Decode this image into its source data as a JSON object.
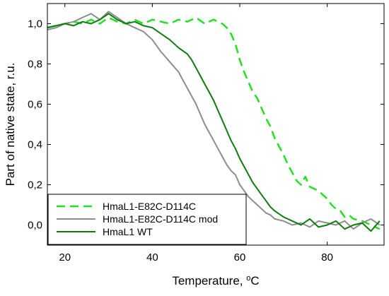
{
  "chart_data": {
    "type": "line",
    "xlabel": "Temperature, ",
    "xlabel_unit": "C",
    "xlabel_superscript": "o",
    "ylabel": "Part of native state, r.u.",
    "xlim": [
      16,
      93
    ],
    "ylim": [
      -0.1,
      1.1
    ],
    "x_ticks": [
      20,
      40,
      60,
      80
    ],
    "y_ticks": [
      0.0,
      0.2,
      0.4,
      0.6,
      0.8,
      1.0
    ],
    "x_tick_labels": [
      "20",
      "40",
      "60",
      "80"
    ],
    "y_tick_labels": [
      "0,0",
      "0,2",
      "0,4",
      "0,6",
      "0,8",
      "1,0"
    ],
    "grid": false,
    "legend_position": "bottom-left",
    "series": [
      {
        "name": "HmaL1-E82C-D114C",
        "color": "#22e022",
        "dash": "dashed",
        "x": [
          16,
          18,
          20,
          22,
          24,
          26,
          28,
          30,
          32,
          34,
          36,
          38,
          40,
          42,
          44,
          46,
          48,
          50,
          52,
          54,
          56,
          57,
          58,
          59,
          60,
          61,
          62,
          63,
          64,
          65,
          66,
          67,
          68,
          69,
          70,
          71,
          72,
          73,
          74,
          75,
          76,
          77,
          78,
          79,
          80,
          81,
          82,
          83,
          84,
          85,
          86,
          88,
          90,
          92
        ],
        "y": [
          0.98,
          0.99,
          1.0,
          1.01,
          1.0,
          1.02,
          1.0,
          1.03,
          1.01,
          1.0,
          1.02,
          1.0,
          1.02,
          1.01,
          1.0,
          1.02,
          1.01,
          1.03,
          1.0,
          1.02,
          1.0,
          0.98,
          0.95,
          0.9,
          0.82,
          0.76,
          0.71,
          0.66,
          0.63,
          0.58,
          0.53,
          0.49,
          0.43,
          0.39,
          0.35,
          0.3,
          0.26,
          0.22,
          0.2,
          0.24,
          0.19,
          0.18,
          0.17,
          0.15,
          0.13,
          0.1,
          0.08,
          0.07,
          0.04,
          0.05,
          0.03,
          0.02,
          0.0,
          -0.02
        ]
      },
      {
        "name": "HmaL1-E82C-D114C mod",
        "color": "#8c8c8c",
        "dash": "solid",
        "x": [
          16,
          18,
          20,
          22,
          24,
          26,
          28,
          30,
          32,
          34,
          36,
          38,
          40,
          42,
          44,
          46,
          47,
          48,
          49,
          50,
          51,
          52,
          53,
          54,
          55,
          56,
          57,
          58,
          59,
          60,
          61,
          62,
          63,
          64,
          65,
          66,
          67,
          68,
          70,
          72,
          74,
          76,
          78,
          80,
          82,
          84,
          86,
          88,
          90,
          92
        ],
        "y": [
          0.97,
          0.98,
          1.0,
          1.01,
          1.03,
          1.05,
          1.02,
          1.06,
          1.03,
          1.0,
          0.98,
          0.96,
          0.92,
          0.86,
          0.81,
          0.76,
          0.72,
          0.68,
          0.64,
          0.6,
          0.55,
          0.5,
          0.46,
          0.42,
          0.38,
          0.34,
          0.3,
          0.27,
          0.25,
          0.2,
          0.17,
          0.14,
          0.12,
          0.1,
          0.08,
          0.06,
          0.05,
          0.03,
          0.02,
          0.0,
          0.01,
          -0.01,
          0.02,
          0.01,
          0.0,
          0.02,
          -0.02,
          0.01,
          0.03,
          0.0
        ]
      },
      {
        "name": "HmaL1 WT",
        "color": "#0b7d0b",
        "dash": "solid",
        "x": [
          16,
          18,
          20,
          22,
          24,
          26,
          28,
          30,
          32,
          34,
          36,
          38,
          40,
          42,
          44,
          46,
          48,
          49,
          50,
          51,
          52,
          53,
          54,
          55,
          56,
          57,
          58,
          59,
          60,
          61,
          62,
          63,
          64,
          65,
          66,
          67,
          68,
          70,
          72,
          74,
          76,
          78,
          80,
          82,
          84,
          86,
          88,
          90,
          92
        ],
        "y": [
          0.98,
          0.99,
          1.0,
          0.99,
          1.01,
          1.0,
          1.02,
          1.05,
          1.02,
          1.0,
          1.01,
          0.99,
          0.98,
          0.95,
          0.92,
          0.88,
          0.85,
          0.82,
          0.78,
          0.74,
          0.7,
          0.66,
          0.62,
          0.57,
          0.52,
          0.47,
          0.42,
          0.38,
          0.33,
          0.29,
          0.25,
          0.21,
          0.18,
          0.15,
          0.12,
          0.09,
          0.07,
          0.04,
          0.02,
          0.0,
          0.03,
          -0.01,
          0.0,
          0.02,
          -0.02,
          0.0,
          0.01,
          -0.03,
          0.02
        ]
      }
    ]
  }
}
